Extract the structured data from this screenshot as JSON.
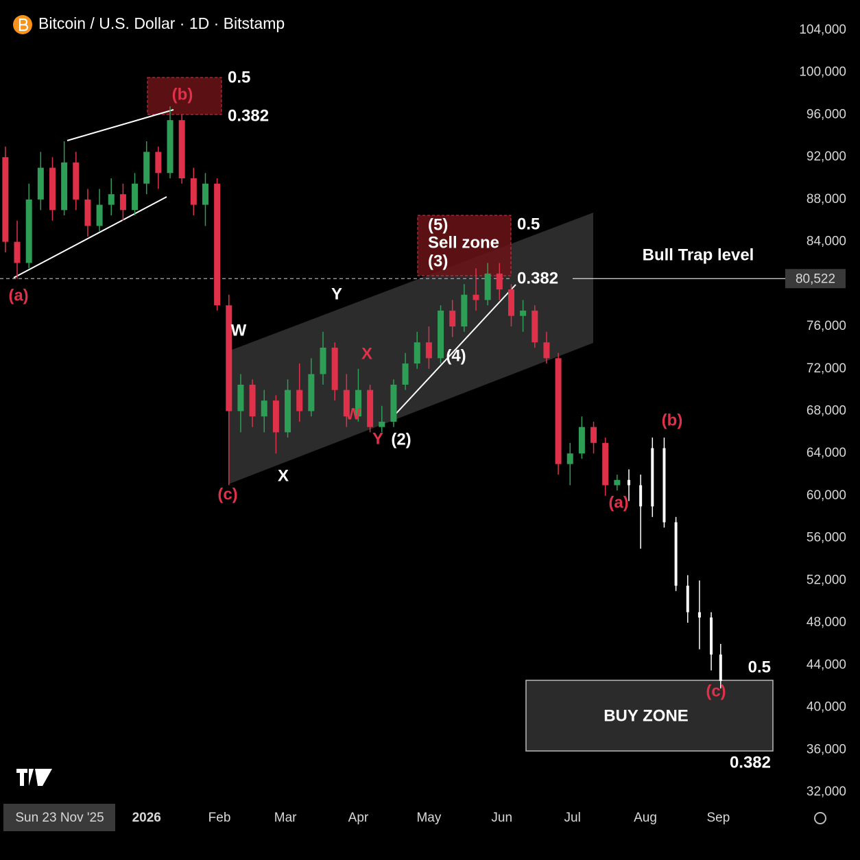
{
  "chart_data": {
    "type": "candlestick",
    "title": "Bitcoin / U.S. Dollar · 1D · Bitstamp",
    "xlim": [
      -2,
      330
    ],
    "xticks": [
      {
        "value": 21,
        "label": "Sun 23 Nov '25"
      },
      {
        "value": 60,
        "label": "2026"
      },
      {
        "value": 91,
        "label": "Feb"
      },
      {
        "value": 119,
        "label": "Mar"
      },
      {
        "value": 150,
        "label": "Apr"
      },
      {
        "value": 180,
        "label": "May"
      },
      {
        "value": 211,
        "label": "Jun"
      },
      {
        "value": 241,
        "label": "Jul"
      },
      {
        "value": 272,
        "label": "Aug"
      },
      {
        "value": 303,
        "label": "Sep"
      }
    ],
    "ylim": [
      32000,
      104000
    ],
    "yticks": [
      {
        "value": 104000,
        "label": "104,000"
      },
      {
        "value": 100000,
        "label": "100,000"
      },
      {
        "value": 96000,
        "label": "96,000"
      },
      {
        "value": 92000,
        "label": "92,000"
      },
      {
        "value": 88000,
        "label": "88,000"
      },
      {
        "value": 84000,
        "label": "84,000"
      },
      {
        "value": 76000,
        "label": "76,000"
      },
      {
        "value": 72000,
        "label": "72,000"
      },
      {
        "value": 68000,
        "label": "68,000"
      },
      {
        "value": 64000,
        "label": "64,000"
      },
      {
        "value": 60000,
        "label": "60,000"
      },
      {
        "value": 56000,
        "label": "56,000"
      },
      {
        "value": 52000,
        "label": "52,000"
      },
      {
        "value": 48000,
        "label": "48,000"
      },
      {
        "value": 44000,
        "label": "44,000"
      },
      {
        "value": 40000,
        "label": "40,000"
      },
      {
        "value": 36000,
        "label": "36,000"
      },
      {
        "value": 32000,
        "label": "32,000"
      }
    ],
    "price_line": {
      "value": 80522,
      "label": "80,522"
    },
    "series": [
      {
        "up_color": "#2e9e57",
        "down_color": "#e0314a",
        "x": [
          0,
          5,
          10,
          15,
          20,
          25,
          30,
          35,
          40,
          45,
          50,
          55,
          60,
          65,
          70,
          75,
          80,
          85,
          90,
          95,
          100,
          105,
          110,
          115,
          120,
          125,
          130,
          135,
          140,
          145,
          150,
          155,
          160,
          165,
          170,
          175,
          180,
          185,
          190,
          195,
          200,
          205,
          210,
          215,
          220,
          225,
          230,
          235,
          240,
          245,
          250,
          255,
          260
        ],
        "open": [
          92000,
          84000,
          82000,
          88000,
          91000,
          87000,
          91500,
          88000,
          85500,
          87500,
          88500,
          87000,
          89500,
          92500,
          90500,
          95500,
          90000,
          87500,
          89500,
          78000,
          68000,
          70500,
          67500,
          69000,
          66000,
          70000,
          68000,
          71500,
          74000,
          70000,
          67500,
          70000,
          66500,
          67000,
          70500,
          72500,
          74500,
          73000,
          77500,
          76000,
          79000,
          78500,
          81000,
          79500,
          77000,
          77500,
          74500,
          73000,
          63000,
          64000,
          66500,
          65000,
          61000
        ],
        "high": [
          93000,
          86000,
          89500,
          92500,
          92000,
          93500,
          92500,
          89000,
          89000,
          90000,
          89500,
          90500,
          93500,
          93000,
          96800,
          96000,
          91000,
          90500,
          90000,
          79000,
          71500,
          71000,
          70000,
          69500,
          71000,
          72500,
          73000,
          75500,
          74500,
          71500,
          72000,
          70500,
          68500,
          71000,
          73500,
          75500,
          76000,
          78000,
          78500,
          80000,
          81500,
          82000,
          82000,
          80000,
          78500,
          78000,
          75500,
          73500,
          65000,
          67500,
          67000,
          65500,
          62000
        ],
        "low": [
          83000,
          80500,
          81500,
          87000,
          86000,
          86500,
          87000,
          84500,
          85000,
          86500,
          86000,
          86500,
          88500,
          89000,
          90000,
          89500,
          86500,
          85500,
          77500,
          61000,
          66000,
          66500,
          66000,
          64000,
          65500,
          67000,
          67500,
          70500,
          69000,
          66500,
          67000,
          66000,
          66000,
          66500,
          70000,
          72000,
          72000,
          72500,
          75000,
          75500,
          77500,
          78000,
          78500,
          76000,
          75500,
          74000,
          72500,
          62000,
          61000,
          63500,
          64000,
          60000,
          60500
        ],
        "close": [
          84000,
          82000,
          88000,
          91000,
          87000,
          91500,
          88000,
          85500,
          87500,
          88500,
          87000,
          89500,
          92500,
          90500,
          95500,
          90000,
          87500,
          89500,
          78000,
          68000,
          70500,
          67500,
          69000,
          66000,
          70000,
          68000,
          71500,
          74000,
          70000,
          67500,
          70000,
          66500,
          67000,
          70500,
          72500,
          74500,
          73000,
          77500,
          76000,
          79000,
          78500,
          81000,
          79500,
          77000,
          77500,
          74500,
          73000,
          63000,
          64000,
          66500,
          65000,
          61000,
          61500
        ]
      },
      {
        "color": "#ffffff",
        "x": [
          265,
          270,
          275,
          280,
          285,
          290,
          295,
          300,
          304
        ],
        "open": [
          61500,
          61000,
          59000,
          64500,
          57500,
          51500,
          49000,
          48500,
          45000
        ],
        "high": [
          62500,
          62000,
          65500,
          65500,
          58000,
          52500,
          52000,
          49000,
          46000
        ],
        "low": [
          59500,
          55000,
          58000,
          57000,
          51000,
          48000,
          45500,
          43500,
          41800
        ],
        "close": [
          61000,
          59000,
          64500,
          57500,
          51500,
          49000,
          48500,
          45000,
          42500
        ]
      }
    ],
    "annotations": [
      {
        "text": "0.5",
        "color": "#ffffff"
      },
      {
        "text": "(b)",
        "color": "#e0314a"
      },
      {
        "text": "0.382",
        "color": "#ffffff"
      },
      {
        "text": "(a)",
        "color": "#e0314a"
      },
      {
        "text": "W",
        "color": "#ffffff"
      },
      {
        "text": "Y",
        "color": "#ffffff"
      },
      {
        "text": "X",
        "color": "#e0314a"
      },
      {
        "text": "W",
        "color": "#e0314a"
      },
      {
        "text": "Y",
        "color": "#e0314a"
      },
      {
        "text": "(2)",
        "color": "#ffffff"
      },
      {
        "text": "(4)",
        "color": "#ffffff"
      },
      {
        "text": "(c)",
        "color": "#e0314a"
      },
      {
        "text": "X",
        "color": "#ffffff"
      },
      {
        "text": "(5)",
        "color": "#ffffff"
      },
      {
        "text": "Sell zone",
        "color": "#ffffff"
      },
      {
        "text": "(3)",
        "color": "#ffffff"
      },
      {
        "text": "0.5",
        "color": "#ffffff"
      },
      {
        "text": "0.382",
        "color": "#ffffff"
      },
      {
        "text": "Bull Trap level",
        "color": "#ffffff"
      },
      {
        "text": "(b)",
        "color": "#e0314a"
      },
      {
        "text": "(a)",
        "color": "#e0314a"
      },
      {
        "text": "0.5",
        "color": "#ffffff"
      },
      {
        "text": "(c)",
        "color": "#e0314a"
      },
      {
        "text": "BUY ZONE",
        "color": "#ffffff"
      },
      {
        "text": "0.382",
        "color": "#ffffff"
      }
    ]
  }
}
